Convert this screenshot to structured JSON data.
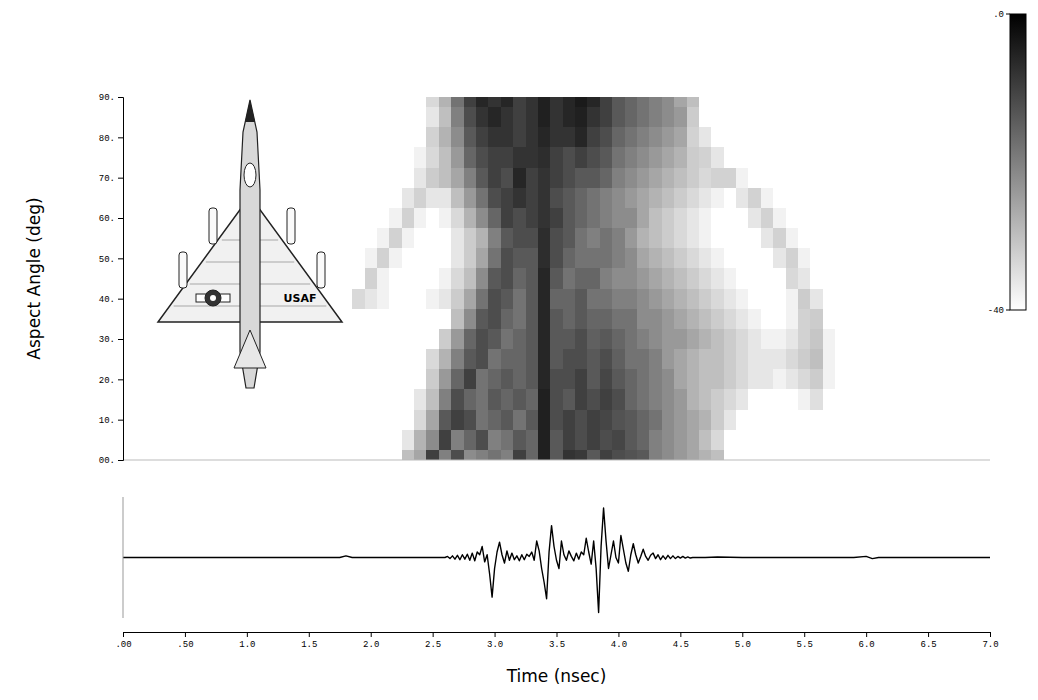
{
  "chart_data": [
    {
      "type": "heatmap",
      "y_label": "Aspect Angle (deg)",
      "annotations": [
        "USAF"
      ],
      "x": [
        1.9,
        2.0,
        2.1,
        2.2,
        2.3,
        2.4,
        2.5,
        2.6,
        2.7,
        2.8,
        2.9,
        3.0,
        3.1,
        3.2,
        3.3,
        3.4,
        3.5,
        3.6,
        3.7,
        3.8,
        3.9,
        4.0,
        4.1,
        4.2,
        4.3,
        4.4,
        4.5,
        4.6,
        4.7,
        4.8,
        4.9,
        5.0,
        5.1,
        5.2,
        5.3,
        5.4,
        5.5,
        5.6,
        5.7,
        5.8,
        5.9
      ],
      "y": [
        0,
        5,
        10,
        15,
        20,
        25,
        30,
        35,
        40,
        45,
        50,
        55,
        60,
        65,
        70,
        75,
        80,
        85,
        90
      ],
      "values": [
        [
          -40,
          -40,
          -40,
          -40,
          -30,
          -26,
          -10,
          -20,
          -12,
          -22,
          -20,
          -18,
          -20,
          -10,
          -16,
          -5,
          -14,
          -8,
          -9,
          -14,
          -10,
          -12,
          -13,
          -14,
          -20,
          -22,
          -24,
          -26,
          -28,
          -30,
          -40,
          -40,
          -40,
          -40,
          -40,
          -40,
          -40,
          -40,
          -40,
          -40,
          -40
        ],
        [
          -40,
          -40,
          -40,
          -40,
          -36,
          -28,
          -22,
          -10,
          -20,
          -16,
          -12,
          -20,
          -18,
          -14,
          -16,
          -5,
          -14,
          -10,
          -12,
          -10,
          -12,
          -11,
          -14,
          -16,
          -20,
          -22,
          -24,
          -26,
          -30,
          -34,
          -40,
          -40,
          -40,
          -40,
          -40,
          -40,
          -40,
          -40,
          -40,
          -40,
          -40
        ],
        [
          -40,
          -40,
          -40,
          -40,
          -40,
          -34,
          -26,
          -14,
          -10,
          -12,
          -18,
          -16,
          -14,
          -18,
          -14,
          -5,
          -12,
          -10,
          -12,
          -10,
          -11,
          -13,
          -14,
          -16,
          -18,
          -22,
          -24,
          -26,
          -28,
          -32,
          -36,
          -40,
          -40,
          -40,
          -40,
          -40,
          -40,
          -40,
          -40,
          -40,
          -40
        ],
        [
          -40,
          -40,
          -40,
          -40,
          -40,
          -36,
          -30,
          -20,
          -12,
          -16,
          -18,
          -14,
          -16,
          -14,
          -16,
          -5,
          -12,
          -14,
          -10,
          -12,
          -10,
          -12,
          -16,
          -18,
          -20,
          -22,
          -24,
          -28,
          -30,
          -32,
          -34,
          -36,
          -40,
          -40,
          -40,
          -40,
          -38,
          -35,
          -40,
          -40,
          -40
        ],
        [
          -40,
          -40,
          -40,
          -40,
          -40,
          -40,
          -32,
          -24,
          -16,
          -10,
          -18,
          -16,
          -14,
          -16,
          -14,
          -6,
          -12,
          -12,
          -10,
          -14,
          -11,
          -14,
          -16,
          -18,
          -20,
          -22,
          -26,
          -28,
          -30,
          -30,
          -32,
          -34,
          -36,
          -36,
          -38,
          -36,
          -34,
          -32,
          -38,
          -40,
          -40
        ],
        [
          -40,
          -40,
          -40,
          -40,
          -40,
          -40,
          -34,
          -28,
          -20,
          -14,
          -12,
          -18,
          -16,
          -16,
          -14,
          -6,
          -14,
          -12,
          -12,
          -14,
          -12,
          -15,
          -18,
          -18,
          -20,
          -24,
          -26,
          -28,
          -30,
          -30,
          -32,
          -34,
          -36,
          -36,
          -36,
          -34,
          -32,
          -30,
          -38,
          -40,
          -40
        ],
        [
          -40,
          -40,
          -40,
          -40,
          -40,
          -40,
          -40,
          -32,
          -24,
          -16,
          -12,
          -14,
          -18,
          -16,
          -14,
          -6,
          -14,
          -14,
          -12,
          -15,
          -14,
          -16,
          -18,
          -20,
          -22,
          -24,
          -24,
          -26,
          -28,
          -30,
          -32,
          -34,
          -36,
          -38,
          -38,
          -36,
          -33,
          -31,
          -38,
          -40,
          -40
        ],
        [
          -40,
          -40,
          -40,
          -40,
          -40,
          -40,
          -40,
          -40,
          -30,
          -22,
          -14,
          -12,
          -16,
          -18,
          -14,
          -6,
          -14,
          -16,
          -14,
          -16,
          -16,
          -18,
          -18,
          -22,
          -22,
          -24,
          -26,
          -28,
          -30,
          -32,
          -34,
          -36,
          -38,
          -40,
          -40,
          -38,
          -33,
          -32,
          -40,
          -40,
          -40
        ],
        [
          -34,
          -36,
          -38,
          -40,
          -40,
          -40,
          -38,
          -36,
          -32,
          -26,
          -18,
          -12,
          -14,
          -18,
          -14,
          -6,
          -16,
          -16,
          -14,
          -18,
          -18,
          -20,
          -20,
          -22,
          -24,
          -26,
          -28,
          -30,
          -32,
          -34,
          -36,
          -38,
          -40,
          -40,
          -40,
          -38,
          -32,
          -36,
          -40,
          -40,
          -40
        ],
        [
          -40,
          -33,
          -38,
          -40,
          -40,
          -40,
          -40,
          -38,
          -34,
          -30,
          -22,
          -14,
          -12,
          -16,
          -14,
          -6,
          -14,
          -18,
          -16,
          -16,
          -20,
          -22,
          -22,
          -24,
          -26,
          -28,
          -30,
          -32,
          -34,
          -36,
          -38,
          -40,
          -40,
          -40,
          -40,
          -34,
          -36,
          -40,
          -40,
          -40,
          -40
        ],
        [
          -40,
          -38,
          -33,
          -38,
          -40,
          -40,
          -40,
          -40,
          -36,
          -32,
          -26,
          -18,
          -12,
          -14,
          -14,
          -7,
          -12,
          -16,
          -18,
          -18,
          -18,
          -20,
          -22,
          -26,
          -28,
          -30,
          -32,
          -34,
          -36,
          -38,
          -40,
          -40,
          -40,
          -40,
          -36,
          -33,
          -38,
          -40,
          -40,
          -40,
          -40
        ],
        [
          -40,
          -40,
          -38,
          -33,
          -38,
          -40,
          -40,
          -40,
          -36,
          -32,
          -28,
          -20,
          -14,
          -12,
          -12,
          -7,
          -12,
          -14,
          -18,
          -20,
          -18,
          -20,
          -24,
          -28,
          -30,
          -32,
          -34,
          -36,
          -38,
          -40,
          -40,
          -40,
          -40,
          -36,
          -33,
          -38,
          -40,
          -40,
          -40,
          -40,
          -40
        ],
        [
          -40,
          -40,
          -40,
          -38,
          -33,
          -38,
          -40,
          -38,
          -34,
          -28,
          -22,
          -16,
          -10,
          -12,
          -10,
          -8,
          -10,
          -14,
          -16,
          -18,
          -20,
          -22,
          -22,
          -26,
          -30,
          -32,
          -34,
          -36,
          -38,
          -40,
          -40,
          -40,
          -36,
          -33,
          -38,
          -40,
          -40,
          -40,
          -40,
          -40,
          -40
        ],
        [
          -40,
          -40,
          -40,
          -40,
          -36,
          -33,
          -36,
          -36,
          -30,
          -24,
          -18,
          -12,
          -10,
          -8,
          -10,
          -8,
          -12,
          -14,
          -16,
          -18,
          -20,
          -22,
          -24,
          -26,
          -28,
          -30,
          -32,
          -34,
          -36,
          -38,
          -40,
          -36,
          -33,
          -38,
          -40,
          -40,
          -40,
          -40,
          -40,
          -40,
          -40
        ],
        [
          -40,
          -40,
          -40,
          -40,
          -40,
          -36,
          -32,
          -30,
          -26,
          -20,
          -14,
          -10,
          -12,
          -6,
          -10,
          -8,
          -10,
          -12,
          -14,
          -14,
          -16,
          -20,
          -22,
          -24,
          -26,
          -28,
          -30,
          -32,
          -34,
          -33,
          -33,
          -38,
          -40,
          -40,
          -40,
          -40,
          -40,
          -40,
          -40,
          -40,
          -40
        ],
        [
          -40,
          -40,
          -40,
          -40,
          -40,
          -38,
          -34,
          -30,
          -24,
          -16,
          -12,
          -10,
          -10,
          -8,
          -8,
          -7,
          -10,
          -12,
          -10,
          -12,
          -14,
          -18,
          -20,
          -22,
          -24,
          -26,
          -28,
          -32,
          -33,
          -36,
          -40,
          -40,
          -40,
          -40,
          -40,
          -40,
          -40,
          -40,
          -40,
          -40,
          -40
        ],
        [
          -40,
          -40,
          -40,
          -40,
          -40,
          -40,
          -33,
          -28,
          -22,
          -14,
          -10,
          -8,
          -8,
          -10,
          -8,
          -6,
          -8,
          -8,
          -6,
          -10,
          -12,
          -16,
          -18,
          -20,
          -22,
          -24,
          -26,
          -33,
          -36,
          -40,
          -40,
          -40,
          -40,
          -40,
          -40,
          -40,
          -40,
          -40,
          -40,
          -40,
          -40
        ],
        [
          -40,
          -40,
          -40,
          -40,
          -40,
          -40,
          -36,
          -30,
          -20,
          -12,
          -8,
          -6,
          -8,
          -10,
          -8,
          -5,
          -8,
          -6,
          -5,
          -8,
          -10,
          -14,
          -16,
          -18,
          -20,
          -22,
          -24,
          -32,
          -40,
          -40,
          -40,
          -40,
          -40,
          -40,
          -40,
          -40,
          -40,
          -40,
          -40,
          -40,
          -40
        ],
        [
          -40,
          -40,
          -40,
          -40,
          -40,
          -40,
          -34,
          -28,
          -18,
          -10,
          -6,
          -8,
          -6,
          -10,
          -8,
          -5,
          -8,
          -6,
          -4,
          -6,
          -10,
          -14,
          -16,
          -18,
          -20,
          -22,
          -26,
          -30,
          -40,
          -40,
          -40,
          -40,
          -40,
          -40,
          -40,
          -40,
          -40,
          -40,
          -40,
          -40,
          -40
        ]
      ],
      "xlim": [
        0,
        7
      ],
      "ylim": [
        0,
        90
      ],
      "yticks": [
        {
          "value": 0,
          "label": "00."
        },
        {
          "value": 10,
          "label": "10."
        },
        {
          "value": 20,
          "label": "20."
        },
        {
          "value": 30,
          "label": "30."
        },
        {
          "value": 40,
          "label": "40."
        },
        {
          "value": 50,
          "label": "50."
        },
        {
          "value": 60,
          "label": "60."
        },
        {
          "value": 70,
          "label": "70."
        },
        {
          "value": 80,
          "label": "80."
        },
        {
          "value": 90,
          "label": "90."
        }
      ],
      "tick_labels": "y",
      "colorbar": {
        "range": [
          -40,
          0
        ],
        "ticks": [
          {
            "value": 0,
            "label": ".0"
          },
          -40
        ]
      }
    },
    {
      "type": "line",
      "x_label": "Time (nsec)",
      "color": "#000000",
      "x": [
        0,
        0.5,
        1.0,
        1.5,
        1.75,
        1.8,
        1.85,
        2.0,
        2.5,
        2.6,
        2.62,
        2.64,
        2.66,
        2.68,
        2.7,
        2.72,
        2.74,
        2.76,
        2.78,
        2.8,
        2.82,
        2.84,
        2.86,
        2.88,
        2.9,
        2.92,
        2.94,
        2.96,
        2.98,
        3.0,
        3.02,
        3.04,
        3.06,
        3.08,
        3.1,
        3.12,
        3.14,
        3.16,
        3.18,
        3.2,
        3.22,
        3.24,
        3.26,
        3.28,
        3.3,
        3.32,
        3.34,
        3.36,
        3.38,
        3.4,
        3.42,
        3.44,
        3.46,
        3.48,
        3.5,
        3.52,
        3.54,
        3.56,
        3.58,
        3.6,
        3.62,
        3.64,
        3.66,
        3.68,
        3.7,
        3.72,
        3.74,
        3.76,
        3.78,
        3.8,
        3.82,
        3.84,
        3.86,
        3.88,
        3.9,
        3.92,
        3.94,
        3.96,
        3.98,
        4.0,
        4.02,
        4.04,
        4.06,
        4.08,
        4.1,
        4.12,
        4.14,
        4.16,
        4.18,
        4.2,
        4.22,
        4.24,
        4.26,
        4.28,
        4.3,
        4.32,
        4.34,
        4.36,
        4.38,
        4.4,
        4.42,
        4.44,
        4.46,
        4.48,
        4.5,
        4.52,
        4.54,
        4.56,
        4.58,
        4.6,
        4.7,
        4.8,
        5.0,
        5.5,
        5.9,
        6.0,
        6.05,
        6.1,
        6.5,
        7.0
      ],
      "values": [
        0,
        0,
        0,
        0,
        0,
        0.03,
        0,
        0,
        0,
        0,
        0.02,
        -0.02,
        0.03,
        -0.03,
        0.04,
        -0.04,
        0.05,
        -0.03,
        0.06,
        -0.05,
        0.08,
        -0.06,
        0.1,
        0.05,
        0.2,
        -0.08,
        0.05,
        -0.3,
        -0.72,
        -0.2,
        0.1,
        0.28,
        0.05,
        -0.1,
        0.12,
        -0.05,
        0.08,
        -0.04,
        0.03,
        -0.06,
        0.05,
        -0.04,
        0.06,
        0.02,
        0.1,
        -0.05,
        0.3,
        0.12,
        -0.2,
        -0.45,
        -0.75,
        0.1,
        0.58,
        0.2,
        -0.05,
        -0.2,
        0.3,
        0.05,
        -0.05,
        0.12,
        0.02,
        -0.06,
        0.08,
        -0.03,
        0.1,
        0.05,
        0.35,
        0.1,
        -0.12,
        0.3,
        -0.2,
        -1.0,
        0.2,
        0.9,
        0.3,
        -0.2,
        0.05,
        0.3,
        0,
        -0.1,
        0.4,
        0.15,
        -0.1,
        -0.25,
        0.05,
        0.25,
        0.05,
        -0.1,
        0.02,
        0.15,
        0.02,
        -0.05,
        0.04,
        0.08,
        -0.02,
        0.05,
        -0.04,
        0.03,
        -0.03,
        0.04,
        -0.02,
        0.03,
        -0.02,
        0.02,
        -0.01,
        0.02,
        -0.01,
        0.01,
        -0.01,
        0,
        0,
        0.01,
        0,
        0,
        0,
        0.02,
        -0.02,
        0,
        0,
        0
      ],
      "xlim": [
        0,
        7
      ],
      "ylim": [
        -1.1,
        1.1
      ],
      "xticks": [
        {
          "value": 0,
          "label": ".00"
        },
        {
          "value": 0.5,
          "label": ".50"
        },
        {
          "value": 1,
          "label": "1.0"
        },
        1.5,
        {
          "value": 2,
          "label": "2.0"
        },
        2.5,
        {
          "value": 3,
          "label": "3.0"
        },
        3.5,
        {
          "value": 4,
          "label": "4.0"
        },
        4.5,
        {
          "value": 5,
          "label": "5.0"
        },
        5.5,
        {
          "value": 6,
          "label": "6.0"
        },
        6.5,
        {
          "value": 7,
          "label": "7.0"
        }
      ],
      "tick_labels": "x"
    }
  ]
}
